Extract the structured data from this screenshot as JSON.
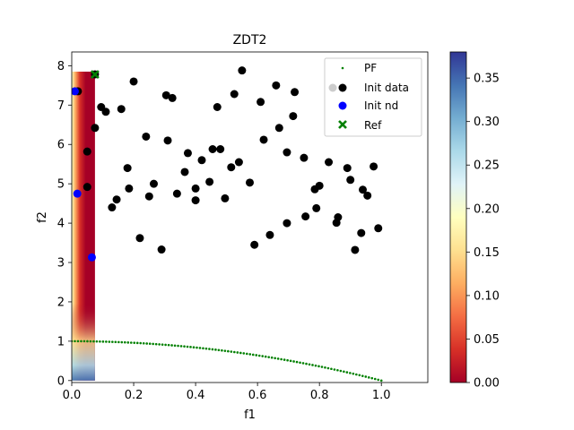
{
  "chart_data": {
    "type": "scatter",
    "title": "ZDT2",
    "xlabel": "f1",
    "ylabel": "f2",
    "xlim": [
      0,
      1.15
    ],
    "ylim": [
      -0.05,
      8.35
    ],
    "xticks": [
      0.0,
      0.2,
      0.4,
      0.6,
      0.8,
      1.0
    ],
    "xtick_labels": [
      "0.0",
      "0.2",
      "0.4",
      "0.6",
      "0.8",
      "1.0"
    ],
    "yticks": [
      0,
      1,
      2,
      3,
      4,
      5,
      6,
      7,
      8
    ],
    "ytick_labels": [
      "0",
      "1",
      "2",
      "3",
      "4",
      "5",
      "6",
      "7",
      "8"
    ],
    "legend_position": "top-right",
    "grid": false,
    "heatmap_region": {
      "x": [
        0.0,
        0.075
      ],
      "y": [
        0.0,
        7.85
      ]
    },
    "colorbar": {
      "range": [
        0.0,
        0.38
      ],
      "ticks": [
        0.0,
        0.05,
        0.1,
        0.15,
        0.2,
        0.25,
        0.3,
        0.35
      ],
      "tick_labels": [
        "0.00",
        "0.05",
        "0.10",
        "0.15",
        "0.20",
        "0.25",
        "0.30",
        "0.35"
      ],
      "colormap": "RdYlBu"
    },
    "series": [
      {
        "name": "PF",
        "marker": "small-dot",
        "color": "#008000",
        "f": "f2 = 1 - f1^2",
        "x_range": [
          0.0,
          1.0
        ],
        "n_points": 100
      },
      {
        "name": "Init data",
        "marker": "circle",
        "color": "#000000",
        "points": [
          [
            0.02,
            7.35
          ],
          [
            0.075,
            7.78
          ],
          [
            0.095,
            6.95
          ],
          [
            0.11,
            6.83
          ],
          [
            0.16,
            6.9
          ],
          [
            0.2,
            7.6
          ],
          [
            0.305,
            7.25
          ],
          [
            0.325,
            7.18
          ],
          [
            0.075,
            6.42
          ],
          [
            0.24,
            6.2
          ],
          [
            0.31,
            6.1
          ],
          [
            0.05,
            5.82
          ],
          [
            0.375,
            5.78
          ],
          [
            0.42,
            5.6
          ],
          [
            0.455,
            5.88
          ],
          [
            0.48,
            5.88
          ],
          [
            0.47,
            6.95
          ],
          [
            0.525,
            7.28
          ],
          [
            0.55,
            7.88
          ],
          [
            0.61,
            7.08
          ],
          [
            0.66,
            7.5
          ],
          [
            0.72,
            7.33
          ],
          [
            0.67,
            6.42
          ],
          [
            0.715,
            6.72
          ],
          [
            0.62,
            6.12
          ],
          [
            0.695,
            5.8
          ],
          [
            0.75,
            5.66
          ],
          [
            0.83,
            5.55
          ],
          [
            0.89,
            5.4
          ],
          [
            0.975,
            5.44
          ],
          [
            0.9,
            5.1
          ],
          [
            0.94,
            4.85
          ],
          [
            0.955,
            4.7
          ],
          [
            0.8,
            4.95
          ],
          [
            0.785,
            4.86
          ],
          [
            0.18,
            5.4
          ],
          [
            0.365,
            5.3
          ],
          [
            0.54,
            5.55
          ],
          [
            0.515,
            5.42
          ],
          [
            0.265,
            5.0
          ],
          [
            0.4,
            4.88
          ],
          [
            0.445,
            5.05
          ],
          [
            0.575,
            5.03
          ],
          [
            0.05,
            4.92
          ],
          [
            0.185,
            4.88
          ],
          [
            0.145,
            4.6
          ],
          [
            0.25,
            4.68
          ],
          [
            0.34,
            4.75
          ],
          [
            0.4,
            4.58
          ],
          [
            0.495,
            4.63
          ],
          [
            0.13,
            4.4
          ],
          [
            0.79,
            4.38
          ],
          [
            0.755,
            4.17
          ],
          [
            0.86,
            4.15
          ],
          [
            0.855,
            4.01
          ],
          [
            0.695,
            4.0
          ],
          [
            0.99,
            3.87
          ],
          [
            0.935,
            3.75
          ],
          [
            0.64,
            3.7
          ],
          [
            0.22,
            3.62
          ],
          [
            0.59,
            3.45
          ],
          [
            0.29,
            3.33
          ],
          [
            0.915,
            3.32
          ]
        ]
      },
      {
        "name": "Init nd",
        "marker": "circle",
        "color": "#0000ff",
        "points": [
          [
            0.01,
            7.35
          ],
          [
            0.018,
            4.75
          ],
          [
            0.065,
            3.13
          ]
        ]
      },
      {
        "name": "Ref",
        "marker": "x",
        "color": "#008000",
        "points": [
          [
            0.075,
            7.78
          ]
        ]
      }
    ]
  }
}
